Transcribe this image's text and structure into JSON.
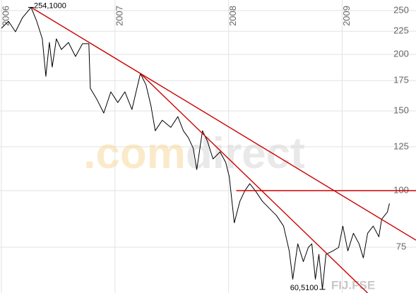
{
  "chart_data": {
    "type": "line",
    "log_scale": true,
    "grid": true,
    "xlim": [
      2006.0,
      2009.65
    ],
    "xticks": [
      2006,
      2007,
      2008,
      2009
    ],
    "ylim": [
      59.4,
      263.8
    ],
    "yticks": [
      75,
      100,
      125,
      150,
      175,
      200,
      225,
      250
    ],
    "series": [
      {
        "color": "#000000",
        "x": [
          2006.0,
          2006.062,
          2006.124,
          2006.186,
          2006.261,
          2006.311,
          2006.36,
          2006.391,
          2006.422,
          2006.447,
          2006.484,
          2006.528,
          2006.59,
          2006.652,
          2006.714,
          2006.77,
          2006.783,
          2006.839,
          2006.901,
          2006.963,
          2007.025,
          2007.087,
          2007.149,
          2007.224,
          2007.273,
          2007.317,
          2007.354,
          2007.416,
          2007.491,
          2007.553,
          2007.602,
          2007.646,
          2007.689,
          2007.72,
          2007.77,
          2007.814,
          2007.863,
          2007.925,
          2007.975,
          2008.006,
          2008.05,
          2008.099,
          2008.143,
          2008.186,
          2008.236,
          2008.298,
          2008.36,
          2008.422,
          2008.484,
          2008.534,
          2008.565,
          2008.609,
          2008.658,
          2008.702,
          2008.733,
          2008.764,
          2008.795,
          2008.826,
          2008.857,
          2008.919,
          2008.969,
          2009.006,
          2009.05,
          2009.099,
          2009.149,
          2009.186,
          2009.224,
          2009.273,
          2009.323,
          2009.348,
          2009.398,
          2009.416
        ],
        "values": [
          228.5,
          236.8,
          224.4,
          241.2,
          254.1,
          236.8,
          216.5,
          178.9,
          212.6,
          187.5,
          216.5,
          205.1,
          212.6,
          197.9,
          211.2,
          211.2,
          168.3,
          159.4,
          148.4,
          165.3,
          156.6,
          165.3,
          151.1,
          181.5,
          171.3,
          153.8,
          135.6,
          143.1,
          138.0,
          145.7,
          135.6,
          130.9,
          124.0,
          111.3,
          135.6,
          128.6,
          117.5,
          121.8,
          115.4,
          107.4,
          84.9,
          94.7,
          99.9,
          103.6,
          99.9,
          94.7,
          91.3,
          88.1,
          83.5,
          73.6,
          63.7,
          76.3,
          69.7,
          74.9,
          76.3,
          63.7,
          72.3,
          60.51,
          72.3,
          73.6,
          74.9,
          83.5,
          73.6,
          80.5,
          76.3,
          71.0,
          80.5,
          83.5,
          79.1,
          86.5,
          89.7,
          93.7
        ]
      },
      {
        "color": "#cc0000",
        "x": [
          2006.261,
          2009.65
        ],
        "values": [
          254.1,
          77.7
        ]
      },
      {
        "color": "#cc0000",
        "x": [
          2007.224,
          2009.224
        ],
        "values": [
          181.5,
          59.4
        ]
      },
      {
        "color": "#cc0000",
        "x": [
          2008.068,
          2009.65
        ],
        "values": [
          100,
          100
        ]
      }
    ],
    "annotations": [
      {
        "label": "254,1000",
        "x": 2006.261,
        "value": 254.1
      },
      {
        "label": "60,5100",
        "x": 2008.826,
        "value": 60.51
      }
    ],
    "watermark": [
      ".com",
      "direct"
    ],
    "footer": "FIJ.FSE"
  }
}
